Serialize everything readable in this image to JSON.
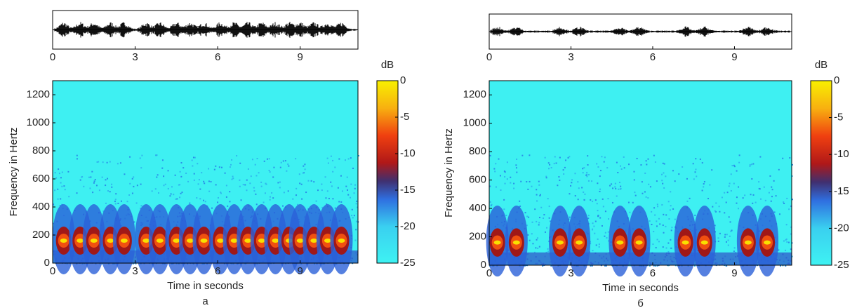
{
  "chart_data": [
    {
      "type": "spectrogram",
      "label": "a",
      "waveform": {
        "xlim": [
          0,
          11.1
        ],
        "xticks": [
          0,
          3,
          6,
          9
        ]
      },
      "xlim": [
        0,
        11.1
      ],
      "xticks": [
        0,
        3,
        6,
        9
      ],
      "ylim": [
        0,
        1300
      ],
      "yticks": [
        0,
        200,
        400,
        600,
        800,
        1000,
        1200
      ],
      "x_label": "Time in seconds",
      "y_label": "Frequency in Hertz",
      "colorbar": {
        "label": "dB",
        "lim": [
          -25,
          0
        ],
        "ticks": [
          0,
          -5,
          -10,
          -15,
          -20,
          -25
        ]
      }
    },
    {
      "type": "spectrogram",
      "label": "б",
      "waveform": {
        "xlim": [
          0,
          11.1
        ],
        "xticks": [
          0,
          3,
          6,
          9
        ]
      },
      "xlim": [
        0,
        11.1
      ],
      "xticks": [
        0,
        3,
        6,
        9
      ],
      "ylim": [
        0,
        1300
      ],
      "yticks": [
        0,
        200,
        400,
        600,
        800,
        1000,
        1200
      ],
      "x_label": "Time in seconds",
      "y_label": "Frequency in Hertz",
      "colorbar": {
        "label": "dB",
        "lim": [
          -25,
          0
        ],
        "ticks": [
          0,
          -5,
          -10,
          -15,
          -20,
          -25
        ]
      }
    }
  ]
}
